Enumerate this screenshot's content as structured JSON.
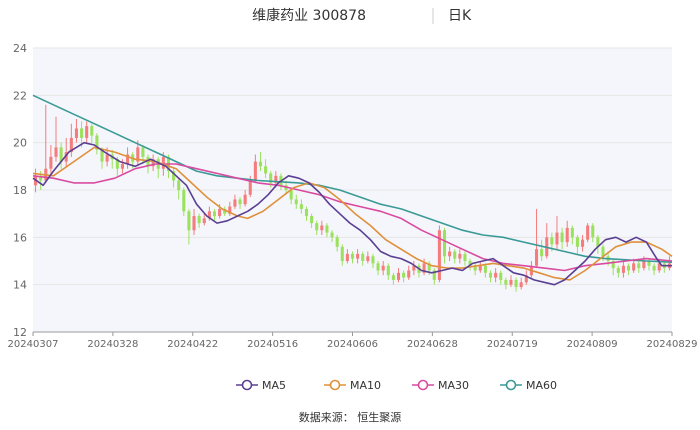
{
  "header": {
    "title": "维康药业 300878",
    "period": "日K"
  },
  "source": "数据来源：  恒生聚源",
  "colors": {
    "up": "#f47c7c",
    "down": "#9be15d",
    "ma5": "#5b3f92",
    "ma10": "#e0903a",
    "ma30": "#d94ba0",
    "ma60": "#3a9a96",
    "grid": "#e6e6e6",
    "plot_bg": "#f4f6fb"
  },
  "chart_data": {
    "type": "candlestick",
    "ylim": [
      12,
      24
    ],
    "y_ticks": [
      "12",
      "14",
      "16",
      "18",
      "20",
      "22",
      "24"
    ],
    "x_ticks": [
      "20240307",
      "20240328",
      "20240422",
      "20240516",
      "20240606",
      "20240628",
      "20240719",
      "20240809",
      "20240829"
    ],
    "trading_days": 125,
    "legend": [
      {
        "key": "ma5",
        "label": "MA5"
      },
      {
        "key": "ma10",
        "label": "MA10"
      },
      {
        "key": "ma30",
        "label": "MA30"
      },
      {
        "key": "ma60",
        "label": "MA60"
      }
    ],
    "ma_series": {
      "ma5": [
        [
          0,
          18.5
        ],
        [
          2,
          18.2
        ],
        [
          4,
          18.8
        ],
        [
          7,
          19.6
        ],
        [
          10,
          20.0
        ],
        [
          12,
          19.9
        ],
        [
          14,
          19.6
        ],
        [
          17,
          19.2
        ],
        [
          20,
          19.0
        ],
        [
          23,
          19.3
        ],
        [
          26,
          19.0
        ],
        [
          28,
          18.6
        ],
        [
          30,
          18.2
        ],
        [
          32,
          17.4
        ],
        [
          34,
          16.9
        ],
        [
          36,
          16.6
        ],
        [
          38,
          16.7
        ],
        [
          40,
          16.9
        ],
        [
          42,
          17.1
        ],
        [
          44,
          17.4
        ],
        [
          46,
          17.8
        ],
        [
          48,
          18.3
        ],
        [
          50,
          18.6
        ],
        [
          52,
          18.5
        ],
        [
          54,
          18.3
        ],
        [
          56,
          17.9
        ],
        [
          58,
          17.4
        ],
        [
          60,
          17.0
        ],
        [
          62,
          16.6
        ],
        [
          64,
          16.3
        ],
        [
          66,
          15.9
        ],
        [
          68,
          15.4
        ],
        [
          70,
          15.2
        ],
        [
          72,
          15.1
        ],
        [
          74,
          14.9
        ],
        [
          76,
          14.6
        ],
        [
          78,
          14.5
        ],
        [
          80,
          14.6
        ],
        [
          82,
          14.7
        ],
        [
          84,
          14.6
        ],
        [
          86,
          14.9
        ],
        [
          88,
          15.0
        ],
        [
          90,
          15.1
        ],
        [
          92,
          14.8
        ],
        [
          94,
          14.5
        ],
        [
          96,
          14.4
        ],
        [
          98,
          14.2
        ],
        [
          100,
          14.1
        ],
        [
          102,
          14.0
        ],
        [
          104,
          14.2
        ],
        [
          106,
          14.6
        ],
        [
          108,
          15.0
        ],
        [
          110,
          15.5
        ],
        [
          112,
          15.9
        ],
        [
          114,
          16.0
        ],
        [
          116,
          15.8
        ],
        [
          118,
          16.0
        ],
        [
          120,
          15.8
        ],
        [
          122,
          15.1
        ],
        [
          123,
          14.8
        ],
        [
          125,
          14.8
        ]
      ],
      "ma10": [
        [
          0,
          18.7
        ],
        [
          4,
          18.6
        ],
        [
          8,
          19.2
        ],
        [
          12,
          19.8
        ],
        [
          16,
          19.6
        ],
        [
          20,
          19.3
        ],
        [
          24,
          19.2
        ],
        [
          28,
          18.9
        ],
        [
          31,
          18.3
        ],
        [
          34,
          17.7
        ],
        [
          37,
          17.2
        ],
        [
          40,
          16.9
        ],
        [
          42,
          16.8
        ],
        [
          45,
          17.1
        ],
        [
          48,
          17.6
        ],
        [
          51,
          18.1
        ],
        [
          54,
          18.3
        ],
        [
          57,
          18.1
        ],
        [
          60,
          17.6
        ],
        [
          63,
          17.0
        ],
        [
          66,
          16.5
        ],
        [
          69,
          15.9
        ],
        [
          72,
          15.5
        ],
        [
          75,
          15.1
        ],
        [
          78,
          14.8
        ],
        [
          81,
          14.7
        ],
        [
          84,
          14.7
        ],
        [
          87,
          14.8
        ],
        [
          90,
          14.9
        ],
        [
          93,
          14.8
        ],
        [
          96,
          14.7
        ],
        [
          99,
          14.5
        ],
        [
          102,
          14.3
        ],
        [
          105,
          14.2
        ],
        [
          108,
          14.6
        ],
        [
          111,
          15.1
        ],
        [
          114,
          15.6
        ],
        [
          117,
          15.8
        ],
        [
          120,
          15.8
        ],
        [
          123,
          15.5
        ],
        [
          125,
          15.2
        ]
      ],
      "ma30": [
        [
          0,
          18.6
        ],
        [
          4,
          18.5
        ],
        [
          8,
          18.3
        ],
        [
          12,
          18.3
        ],
        [
          16,
          18.5
        ],
        [
          20,
          18.9
        ],
        [
          24,
          19.1
        ],
        [
          28,
          19.1
        ],
        [
          32,
          18.9
        ],
        [
          36,
          18.7
        ],
        [
          40,
          18.5
        ],
        [
          44,
          18.3
        ],
        [
          48,
          18.2
        ],
        [
          52,
          18.0
        ],
        [
          56,
          17.8
        ],
        [
          60,
          17.5
        ],
        [
          64,
          17.3
        ],
        [
          68,
          17.1
        ],
        [
          72,
          16.8
        ],
        [
          76,
          16.3
        ],
        [
          80,
          15.9
        ],
        [
          84,
          15.5
        ],
        [
          88,
          15.1
        ],
        [
          92,
          14.9
        ],
        [
          96,
          14.8
        ],
        [
          100,
          14.7
        ],
        [
          104,
          14.6
        ],
        [
          108,
          14.8
        ],
        [
          112,
          14.9
        ],
        [
          116,
          15.0
        ],
        [
          120,
          15.1
        ],
        [
          125,
          15.0
        ]
      ],
      "ma60": [
        [
          0,
          22.0
        ],
        [
          4,
          21.6
        ],
        [
          8,
          21.2
        ],
        [
          12,
          20.8
        ],
        [
          16,
          20.4
        ],
        [
          20,
          20.0
        ],
        [
          24,
          19.6
        ],
        [
          28,
          19.2
        ],
        [
          32,
          18.8
        ],
        [
          36,
          18.6
        ],
        [
          40,
          18.5
        ],
        [
          44,
          18.4
        ],
        [
          48,
          18.35
        ],
        [
          52,
          18.3
        ],
        [
          56,
          18.2
        ],
        [
          60,
          18.0
        ],
        [
          64,
          17.7
        ],
        [
          68,
          17.4
        ],
        [
          72,
          17.2
        ],
        [
          76,
          16.9
        ],
        [
          80,
          16.6
        ],
        [
          84,
          16.3
        ],
        [
          88,
          16.1
        ],
        [
          92,
          16.0
        ],
        [
          96,
          15.8
        ],
        [
          100,
          15.6
        ],
        [
          104,
          15.4
        ],
        [
          108,
          15.2
        ],
        [
          112,
          15.1
        ],
        [
          116,
          15.05
        ],
        [
          120,
          15.0
        ],
        [
          125,
          14.95
        ]
      ]
    },
    "candles": [
      [
        18.2,
        18.6,
        18.9,
        17.9
      ],
      [
        18.6,
        18.4,
        18.8,
        18.0
      ],
      [
        18.4,
        18.9,
        21.6,
        18.3
      ],
      [
        18.9,
        19.4,
        19.9,
        18.6
      ],
      [
        19.4,
        19.8,
        21.1,
        19.2
      ],
      [
        19.8,
        19.2,
        20.0,
        18.9
      ],
      [
        19.2,
        19.6,
        20.2,
        19.0
      ],
      [
        19.6,
        20.2,
        20.8,
        19.4
      ],
      [
        20.2,
        20.6,
        21.0,
        20.0
      ],
      [
        20.6,
        20.2,
        20.9,
        19.8
      ],
      [
        20.2,
        20.7,
        20.9,
        20.0
      ],
      [
        20.7,
        20.3,
        20.8,
        20.0
      ],
      [
        20.3,
        19.7,
        20.4,
        19.5
      ],
      [
        19.7,
        19.2,
        19.8,
        18.9
      ],
      [
        19.2,
        19.5,
        19.8,
        19.0
      ],
      [
        19.5,
        19.3,
        19.7,
        18.9
      ],
      [
        19.3,
        18.9,
        19.4,
        18.6
      ],
      [
        18.9,
        19.1,
        19.3,
        18.7
      ],
      [
        19.1,
        19.5,
        19.8,
        18.9
      ],
      [
        19.5,
        19.2,
        19.6,
        18.9
      ],
      [
        19.2,
        19.8,
        20.1,
        19.0
      ],
      [
        19.8,
        19.4,
        19.9,
        19.1
      ],
      [
        19.4,
        19.0,
        19.5,
        18.7
      ],
      [
        19.0,
        19.3,
        19.5,
        18.8
      ],
      [
        19.3,
        18.9,
        19.4,
        18.5
      ],
      [
        18.9,
        19.4,
        19.6,
        18.6
      ],
      [
        19.4,
        18.8,
        19.5,
        18.5
      ],
      [
        18.8,
        18.4,
        18.9,
        18.1
      ],
      [
        18.4,
        18.0,
        18.5,
        17.6
      ],
      [
        18.0,
        17.1,
        18.1,
        16.9
      ],
      [
        17.1,
        16.3,
        17.2,
        15.7
      ],
      [
        16.3,
        16.9,
        17.2,
        16.1
      ],
      [
        16.9,
        16.6,
        17.0,
        16.4
      ],
      [
        16.6,
        16.8,
        17.0,
        16.5
      ],
      [
        16.8,
        17.1,
        17.3,
        16.7
      ],
      [
        17.1,
        16.9,
        17.2,
        16.7
      ],
      [
        16.9,
        17.2,
        17.4,
        16.8
      ],
      [
        17.2,
        17.0,
        17.3,
        16.9
      ],
      [
        17.0,
        17.3,
        17.5,
        16.9
      ],
      [
        17.3,
        17.6,
        17.8,
        17.2
      ],
      [
        17.6,
        17.4,
        17.7,
        17.2
      ],
      [
        17.4,
        17.8,
        18.0,
        17.3
      ],
      [
        17.8,
        18.4,
        18.6,
        17.7
      ],
      [
        18.4,
        19.2,
        19.5,
        18.3
      ],
      [
        19.2,
        19.0,
        19.6,
        18.8
      ],
      [
        19.0,
        18.7,
        19.3,
        18.5
      ],
      [
        18.7,
        18.3,
        18.8,
        18.1
      ],
      [
        18.3,
        18.6,
        18.8,
        18.1
      ],
      [
        18.6,
        18.2,
        18.7,
        18.0
      ],
      [
        18.2,
        18.0,
        18.4,
        17.8
      ],
      [
        18.0,
        17.6,
        18.1,
        17.4
      ],
      [
        17.6,
        17.4,
        17.8,
        17.2
      ],
      [
        17.4,
        17.2,
        17.6,
        17.0
      ],
      [
        17.2,
        16.9,
        17.3,
        16.7
      ],
      [
        16.9,
        16.6,
        17.0,
        16.4
      ],
      [
        16.6,
        16.3,
        16.7,
        16.1
      ],
      [
        16.3,
        16.5,
        16.7,
        16.1
      ],
      [
        16.5,
        16.2,
        16.6,
        16.0
      ],
      [
        16.2,
        16.0,
        16.3,
        15.8
      ],
      [
        16.0,
        15.6,
        16.1,
        15.4
      ],
      [
        15.6,
        15.0,
        15.7,
        14.8
      ],
      [
        15.0,
        15.3,
        15.5,
        14.9
      ],
      [
        15.3,
        15.1,
        15.4,
        14.9
      ],
      [
        15.1,
        15.3,
        15.5,
        14.9
      ],
      [
        15.3,
        15.0,
        15.4,
        14.8
      ],
      [
        15.0,
        15.2,
        15.4,
        14.9
      ],
      [
        15.2,
        14.9,
        15.3,
        14.7
      ],
      [
        14.9,
        14.6,
        15.0,
        14.4
      ],
      [
        14.6,
        14.8,
        15.0,
        14.4
      ],
      [
        14.8,
        14.4,
        14.9,
        14.2
      ],
      [
        14.4,
        14.2,
        14.5,
        14.0
      ],
      [
        14.2,
        14.5,
        14.7,
        14.1
      ],
      [
        14.5,
        14.3,
        14.6,
        14.1
      ],
      [
        14.3,
        14.6,
        14.8,
        14.2
      ],
      [
        14.6,
        14.8,
        15.0,
        14.4
      ],
      [
        14.8,
        14.5,
        14.9,
        14.3
      ],
      [
        14.5,
        14.9,
        15.1,
        14.4
      ],
      [
        14.9,
        14.6,
        15.0,
        14.4
      ],
      [
        14.6,
        14.2,
        14.7,
        14.0
      ],
      [
        14.2,
        16.3,
        16.5,
        14.1
      ],
      [
        16.3,
        15.2,
        16.4,
        14.9
      ],
      [
        15.2,
        15.4,
        15.6,
        15.0
      ],
      [
        15.4,
        15.1,
        15.5,
        14.9
      ],
      [
        15.1,
        15.3,
        15.5,
        14.9
      ],
      [
        15.3,
        15.0,
        15.4,
        14.8
      ],
      [
        15.0,
        14.8,
        15.1,
        14.6
      ],
      [
        14.8,
        14.6,
        14.9,
        14.4
      ],
      [
        14.6,
        14.8,
        15.0,
        14.5
      ],
      [
        14.8,
        14.5,
        14.9,
        14.3
      ],
      [
        14.5,
        14.3,
        14.6,
        14.1
      ],
      [
        14.3,
        14.5,
        14.7,
        14.1
      ],
      [
        14.5,
        14.2,
        14.6,
        14.0
      ],
      [
        14.2,
        14.0,
        14.3,
        13.8
      ],
      [
        14.0,
        14.2,
        14.4,
        13.9
      ],
      [
        14.2,
        13.9,
        14.3,
        13.7
      ],
      [
        13.9,
        14.1,
        14.3,
        13.8
      ],
      [
        14.1,
        14.4,
        14.6,
        14.0
      ],
      [
        14.4,
        14.8,
        15.0,
        14.3
      ],
      [
        14.8,
        15.5,
        17.2,
        14.7
      ],
      [
        15.5,
        15.2,
        15.9,
        15.0
      ],
      [
        15.2,
        16.0,
        16.6,
        15.1
      ],
      [
        16.0,
        15.7,
        16.2,
        15.4
      ],
      [
        15.7,
        16.2,
        16.9,
        15.5
      ],
      [
        16.2,
        15.8,
        16.4,
        15.5
      ],
      [
        15.8,
        16.4,
        16.7,
        15.6
      ],
      [
        16.4,
        16.0,
        16.5,
        15.7
      ],
      [
        16.0,
        15.6,
        16.1,
        15.3
      ],
      [
        15.6,
        15.9,
        16.1,
        15.4
      ],
      [
        15.9,
        16.5,
        16.6,
        15.8
      ],
      [
        16.5,
        16.0,
        16.6,
        15.8
      ],
      [
        16.0,
        15.6,
        16.1,
        15.3
      ],
      [
        15.6,
        15.2,
        15.7,
        15.0
      ],
      [
        15.2,
        15.0,
        15.4,
        14.8
      ],
      [
        15.0,
        14.7,
        15.1,
        14.4
      ],
      [
        14.7,
        14.5,
        14.8,
        14.3
      ],
      [
        14.5,
        14.8,
        15.0,
        14.3
      ],
      [
        14.8,
        14.6,
        14.9,
        14.4
      ],
      [
        14.6,
        14.9,
        15.1,
        14.5
      ],
      [
        14.9,
        14.7,
        15.0,
        14.5
      ],
      [
        14.7,
        15.0,
        15.2,
        14.6
      ],
      [
        15.0,
        14.8,
        15.1,
        14.6
      ],
      [
        14.8,
        14.6,
        14.9,
        14.4
      ],
      [
        14.6,
        14.9,
        15.1,
        14.5
      ],
      [
        14.9,
        14.7,
        15.0,
        14.5
      ],
      [
        14.7,
        14.9,
        15.2,
        14.6
      ]
    ]
  }
}
